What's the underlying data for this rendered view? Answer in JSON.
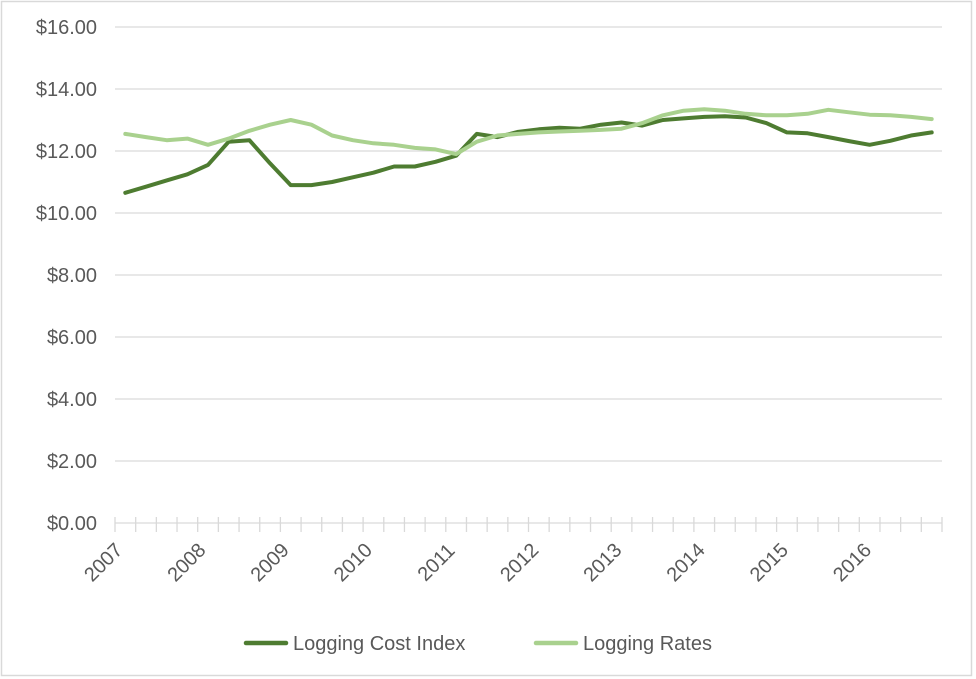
{
  "chart_data": {
    "type": "line",
    "title": "",
    "x_axis": {
      "unit": "quarterly",
      "points_per_year": 4,
      "year_labels": [
        "2007",
        "2008",
        "2009",
        "2010",
        "2011",
        "2012",
        "2013",
        "2014",
        "2015",
        "2016"
      ]
    },
    "y_axis": {
      "min": 0,
      "max": 16,
      "step": 2,
      "format": "USD",
      "tick_labels_top_to_bottom": [
        "$16.00",
        "$14.00",
        "$12.00",
        "$10.00",
        "$8.00",
        "$6.00",
        "$4.00",
        "$2.00",
        "$0.00"
      ]
    },
    "grid": "horizontal",
    "legend_position": "bottom",
    "series": [
      {
        "name": "Logging Cost Index",
        "color": "#4e7c31",
        "values": [
          10.65,
          10.85,
          11.05,
          11.25,
          11.55,
          12.3,
          12.35,
          11.6,
          10.9,
          10.9,
          11.0,
          11.15,
          11.3,
          11.5,
          11.5,
          11.65,
          11.85,
          12.55,
          12.45,
          12.62,
          12.7,
          12.75,
          12.72,
          12.85,
          12.92,
          12.82,
          13.0,
          13.05,
          13.1,
          13.12,
          13.08,
          12.9,
          12.6,
          12.57,
          12.45,
          12.32,
          12.2,
          12.33,
          12.5,
          12.6
        ]
      },
      {
        "name": "Logging Rates",
        "color": "#a9d18e",
        "values": [
          12.55,
          12.45,
          12.35,
          12.4,
          12.2,
          12.4,
          12.65,
          12.85,
          13.0,
          12.85,
          12.5,
          12.35,
          12.25,
          12.2,
          12.1,
          12.05,
          11.9,
          12.3,
          12.5,
          12.55,
          12.6,
          12.63,
          12.65,
          12.68,
          12.72,
          12.9,
          13.15,
          13.3,
          13.35,
          13.3,
          13.2,
          13.15,
          13.15,
          13.2,
          13.33,
          13.25,
          13.17,
          13.15,
          13.1,
          13.03
        ]
      }
    ],
    "colors": {
      "gridline": "#d9d9d9",
      "axis": "#d9d9d9",
      "tick_label": "#595959",
      "legend_text": "#595959",
      "border": "#d9d9d9",
      "background": "#ffffff"
    }
  }
}
